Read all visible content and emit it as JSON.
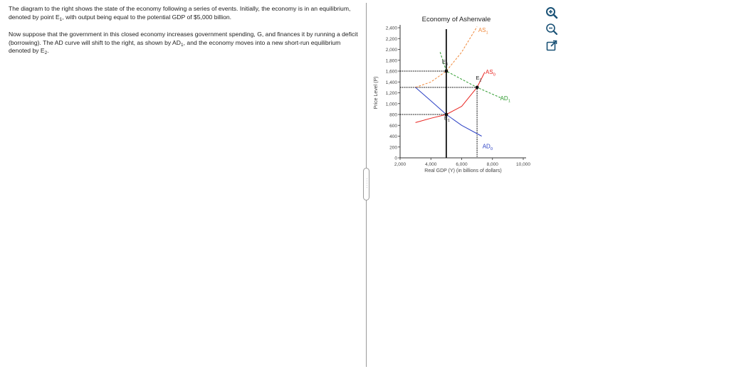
{
  "question": {
    "p1_a": "The diagram to the right shows the state of the economy following a series of events. Initially, the economy is in an equilibrium, denoted by point E",
    "p1_sub": "1",
    "p1_b": ", with output being equal to the potential GDP of $5,000 billion.",
    "p2_a": "Now suppose that the government in this closed economy increases government spending, G, and finances it by running a deficit (borrowing). The AD curve will shift to the right, as shown by AD",
    "p2_sub": "1",
    "p2_b": ", and the economy moves into a new short-run equilibrium denoted by E",
    "p2_sub2": "2",
    "p2_c": "."
  },
  "tools": [
    {
      "name": "zoom-in-icon",
      "color": "#1a5276"
    },
    {
      "name": "zoom-out-icon",
      "color": "#1a5276"
    },
    {
      "name": "expand-icon",
      "color": "#1a5276"
    }
  ],
  "chart_data": {
    "type": "line",
    "title": "Economy of Ashenvale",
    "xlabel": "Real GDP (Y) (in billions of dollars)",
    "ylabel": "Price Level (P)",
    "xlim": [
      2000,
      10000
    ],
    "ylim": [
      0,
      2400
    ],
    "x_ticks": [
      2000,
      4000,
      6000,
      8000,
      10000
    ],
    "x_tick_labels": [
      "2,000",
      "4,000",
      "6,000",
      "8,000",
      "10,000"
    ],
    "y_ticks": [
      0,
      200,
      400,
      600,
      800,
      1000,
      1200,
      1400,
      1600,
      1800,
      2000,
      2200,
      2400
    ],
    "y_tick_labels": [
      "0",
      "200",
      "400",
      "600",
      "800",
      "1,000",
      "1,200",
      "1,400",
      "1,600",
      "1,800",
      "2,000",
      "2,200",
      "2,400"
    ],
    "series": [
      {
        "name": "AS",
        "sub": "0",
        "color": "#e8231f",
        "dash": "solid",
        "points": [
          [
            3000,
            650
          ],
          [
            4000,
            730
          ],
          [
            5000,
            800
          ],
          [
            6000,
            950
          ],
          [
            7000,
            1300
          ],
          [
            7500,
            1580
          ]
        ],
        "label_at": [
          7550,
          1550
        ]
      },
      {
        "name": "AS",
        "sub": "1",
        "color": "#f0883a",
        "dash": "dashed",
        "points": [
          [
            3000,
            1300
          ],
          [
            4000,
            1400
          ],
          [
            5000,
            1600
          ],
          [
            6000,
            1950
          ],
          [
            7000,
            2420
          ]
        ],
        "label_at": [
          7080,
          2320
        ]
      },
      {
        "name": "AD",
        "sub": "0",
        "color": "#2b40c4",
        "dash": "solid",
        "points": [
          [
            3000,
            1300
          ],
          [
            4000,
            1050
          ],
          [
            5000,
            800
          ],
          [
            6000,
            600
          ],
          [
            7300,
            400
          ]
        ],
        "label_at": [
          7350,
          180
        ]
      },
      {
        "name": "AD",
        "sub": "1",
        "color": "#2e9a2e",
        "dash": "dashed",
        "points": [
          [
            4600,
            1950
          ],
          [
            5000,
            1600
          ],
          [
            7000,
            1300
          ],
          [
            8600,
            1100
          ]
        ],
        "label_at": [
          8500,
          1060
        ]
      }
    ],
    "potential_gdp": {
      "x": 5000,
      "color": "#111111"
    },
    "points": [
      {
        "name": "E",
        "sub": "1",
        "x": 5000,
        "y": 800,
        "label_at": [
          4860,
          700
        ]
      },
      {
        "name": "E",
        "sub": "2",
        "x": 7000,
        "y": 1300,
        "label_at": [
          6920,
          1440
        ]
      },
      {
        "name": "E",
        "sub": "3",
        "x": 5000,
        "y": 1600,
        "label_at": [
          4720,
          1740
        ]
      }
    ],
    "guide_lines": [
      {
        "kind": "h",
        "y": 800,
        "x_to": 5000
      },
      {
        "kind": "h",
        "y": 1300,
        "x_to": 7000
      },
      {
        "kind": "h",
        "y": 1600,
        "x_to": 5000
      },
      {
        "kind": "v",
        "x": 7000,
        "y_to": 1300
      }
    ],
    "grid": false
  }
}
